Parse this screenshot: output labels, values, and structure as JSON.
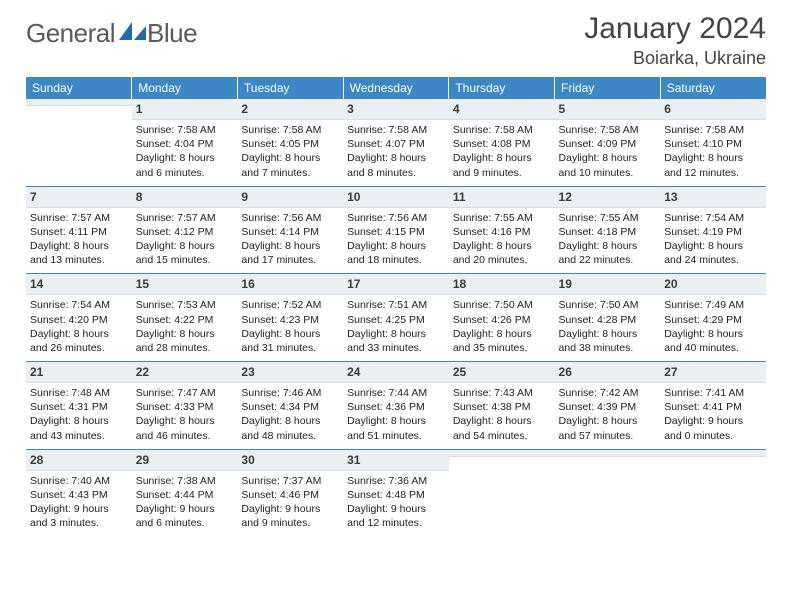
{
  "logo": {
    "text_left": "General",
    "text_right": "Blue"
  },
  "header": {
    "title": "January 2024",
    "location": "Boiarka, Ukraine"
  },
  "colors": {
    "header_bg": "#3b87c8",
    "header_text": "#ffffff",
    "daynum_bg": "#eceff1",
    "row_border": "#3b87c8",
    "body_text": "#222222",
    "page_bg": "#ffffff"
  },
  "weekdays": [
    "Sunday",
    "Monday",
    "Tuesday",
    "Wednesday",
    "Thursday",
    "Friday",
    "Saturday"
  ],
  "weeks": [
    [
      null,
      {
        "day": "1",
        "sunrise": "Sunrise: 7:58 AM",
        "sunset": "Sunset: 4:04 PM",
        "daylight": "Daylight: 8 hours and 6 minutes."
      },
      {
        "day": "2",
        "sunrise": "Sunrise: 7:58 AM",
        "sunset": "Sunset: 4:05 PM",
        "daylight": "Daylight: 8 hours and 7 minutes."
      },
      {
        "day": "3",
        "sunrise": "Sunrise: 7:58 AM",
        "sunset": "Sunset: 4:07 PM",
        "daylight": "Daylight: 8 hours and 8 minutes."
      },
      {
        "day": "4",
        "sunrise": "Sunrise: 7:58 AM",
        "sunset": "Sunset: 4:08 PM",
        "daylight": "Daylight: 8 hours and 9 minutes."
      },
      {
        "day": "5",
        "sunrise": "Sunrise: 7:58 AM",
        "sunset": "Sunset: 4:09 PM",
        "daylight": "Daylight: 8 hours and 10 minutes."
      },
      {
        "day": "6",
        "sunrise": "Sunrise: 7:58 AM",
        "sunset": "Sunset: 4:10 PM",
        "daylight": "Daylight: 8 hours and 12 minutes."
      }
    ],
    [
      {
        "day": "7",
        "sunrise": "Sunrise: 7:57 AM",
        "sunset": "Sunset: 4:11 PM",
        "daylight": "Daylight: 8 hours and 13 minutes."
      },
      {
        "day": "8",
        "sunrise": "Sunrise: 7:57 AM",
        "sunset": "Sunset: 4:12 PM",
        "daylight": "Daylight: 8 hours and 15 minutes."
      },
      {
        "day": "9",
        "sunrise": "Sunrise: 7:56 AM",
        "sunset": "Sunset: 4:14 PM",
        "daylight": "Daylight: 8 hours and 17 minutes."
      },
      {
        "day": "10",
        "sunrise": "Sunrise: 7:56 AM",
        "sunset": "Sunset: 4:15 PM",
        "daylight": "Daylight: 8 hours and 18 minutes."
      },
      {
        "day": "11",
        "sunrise": "Sunrise: 7:55 AM",
        "sunset": "Sunset: 4:16 PM",
        "daylight": "Daylight: 8 hours and 20 minutes."
      },
      {
        "day": "12",
        "sunrise": "Sunrise: 7:55 AM",
        "sunset": "Sunset: 4:18 PM",
        "daylight": "Daylight: 8 hours and 22 minutes."
      },
      {
        "day": "13",
        "sunrise": "Sunrise: 7:54 AM",
        "sunset": "Sunset: 4:19 PM",
        "daylight": "Daylight: 8 hours and 24 minutes."
      }
    ],
    [
      {
        "day": "14",
        "sunrise": "Sunrise: 7:54 AM",
        "sunset": "Sunset: 4:20 PM",
        "daylight": "Daylight: 8 hours and 26 minutes."
      },
      {
        "day": "15",
        "sunrise": "Sunrise: 7:53 AM",
        "sunset": "Sunset: 4:22 PM",
        "daylight": "Daylight: 8 hours and 28 minutes."
      },
      {
        "day": "16",
        "sunrise": "Sunrise: 7:52 AM",
        "sunset": "Sunset: 4:23 PM",
        "daylight": "Daylight: 8 hours and 31 minutes."
      },
      {
        "day": "17",
        "sunrise": "Sunrise: 7:51 AM",
        "sunset": "Sunset: 4:25 PM",
        "daylight": "Daylight: 8 hours and 33 minutes."
      },
      {
        "day": "18",
        "sunrise": "Sunrise: 7:50 AM",
        "sunset": "Sunset: 4:26 PM",
        "daylight": "Daylight: 8 hours and 35 minutes."
      },
      {
        "day": "19",
        "sunrise": "Sunrise: 7:50 AM",
        "sunset": "Sunset: 4:28 PM",
        "daylight": "Daylight: 8 hours and 38 minutes."
      },
      {
        "day": "20",
        "sunrise": "Sunrise: 7:49 AM",
        "sunset": "Sunset: 4:29 PM",
        "daylight": "Daylight: 8 hours and 40 minutes."
      }
    ],
    [
      {
        "day": "21",
        "sunrise": "Sunrise: 7:48 AM",
        "sunset": "Sunset: 4:31 PM",
        "daylight": "Daylight: 8 hours and 43 minutes."
      },
      {
        "day": "22",
        "sunrise": "Sunrise: 7:47 AM",
        "sunset": "Sunset: 4:33 PM",
        "daylight": "Daylight: 8 hours and 46 minutes."
      },
      {
        "day": "23",
        "sunrise": "Sunrise: 7:46 AM",
        "sunset": "Sunset: 4:34 PM",
        "daylight": "Daylight: 8 hours and 48 minutes."
      },
      {
        "day": "24",
        "sunrise": "Sunrise: 7:44 AM",
        "sunset": "Sunset: 4:36 PM",
        "daylight": "Daylight: 8 hours and 51 minutes."
      },
      {
        "day": "25",
        "sunrise": "Sunrise: 7:43 AM",
        "sunset": "Sunset: 4:38 PM",
        "daylight": "Daylight: 8 hours and 54 minutes."
      },
      {
        "day": "26",
        "sunrise": "Sunrise: 7:42 AM",
        "sunset": "Sunset: 4:39 PM",
        "daylight": "Daylight: 8 hours and 57 minutes."
      },
      {
        "day": "27",
        "sunrise": "Sunrise: 7:41 AM",
        "sunset": "Sunset: 4:41 PM",
        "daylight": "Daylight: 9 hours and 0 minutes."
      }
    ],
    [
      {
        "day": "28",
        "sunrise": "Sunrise: 7:40 AM",
        "sunset": "Sunset: 4:43 PM",
        "daylight": "Daylight: 9 hours and 3 minutes."
      },
      {
        "day": "29",
        "sunrise": "Sunrise: 7:38 AM",
        "sunset": "Sunset: 4:44 PM",
        "daylight": "Daylight: 9 hours and 6 minutes."
      },
      {
        "day": "30",
        "sunrise": "Sunrise: 7:37 AM",
        "sunset": "Sunset: 4:46 PM",
        "daylight": "Daylight: 9 hours and 9 minutes."
      },
      {
        "day": "31",
        "sunrise": "Sunrise: 7:36 AM",
        "sunset": "Sunset: 4:48 PM",
        "daylight": "Daylight: 9 hours and 12 minutes."
      },
      null,
      null,
      null
    ]
  ]
}
